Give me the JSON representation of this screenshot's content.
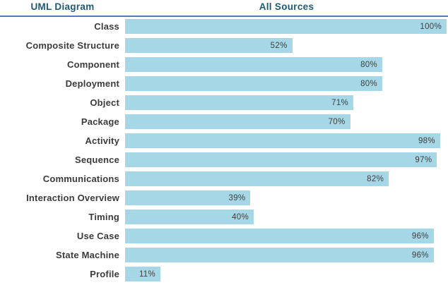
{
  "header": {
    "left": "UML Diagram",
    "right": "All Sources"
  },
  "chart_data": {
    "type": "bar",
    "orientation": "horizontal",
    "title": "",
    "xlabel": "",
    "ylabel": "UML Diagram",
    "series_label": "All Sources",
    "categories": [
      "Class",
      "Composite Structure",
      "Component",
      "Deployment",
      "Object",
      "Package",
      "Activity",
      "Sequence",
      "Communications",
      "Interaction Overview",
      "Timing",
      "Use Case",
      "State Machine",
      "Profile"
    ],
    "values": [
      100,
      52,
      80,
      80,
      71,
      70,
      98,
      97,
      82,
      39,
      40,
      96,
      96,
      11
    ],
    "value_suffix": "%",
    "xlim": [
      0,
      100
    ],
    "grid": false,
    "legend_position": "none",
    "value_labels": "inside-end"
  },
  "colors": {
    "bar_fill": "#A6D7E6",
    "header_text": "#1E5A72",
    "header_rule": "#4A7EBA",
    "category_text": "#3B3B3B",
    "value_text": "#404040",
    "background": "#FFFFFF"
  }
}
